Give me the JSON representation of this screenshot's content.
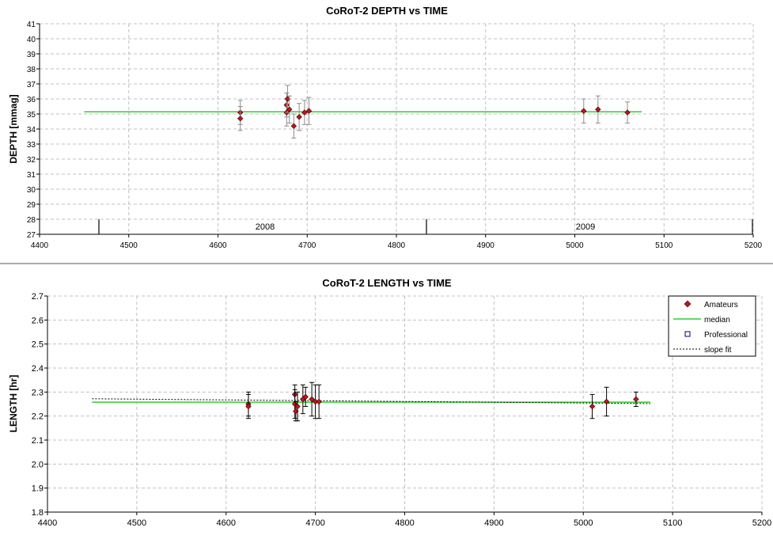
{
  "chart_data": [
    {
      "type": "scatter",
      "title": "CoRoT-2 DEPTH vs TIME",
      "xlabel": "",
      "ylabel": "DEPTH [mmag]",
      "xlim": [
        4400,
        5200
      ],
      "ylim": [
        27,
        41
      ],
      "xticks": [
        4400,
        4500,
        4600,
        4700,
        4800,
        4900,
        5000,
        5100,
        5200
      ],
      "yticks": [
        27,
        28,
        29,
        30,
        31,
        32,
        33,
        34,
        35,
        36,
        37,
        38,
        39,
        40,
        41
      ],
      "grid": true,
      "year_labels": [
        "2008",
        "2009"
      ],
      "series": [
        {
          "name": "",
          "points": [
            {
              "x": 4625,
              "y": 35.1,
              "err": 0.8
            },
            {
              "x": 4625,
              "y": 34.7,
              "err": 0.8
            },
            {
              "x": 4677,
              "y": 35.6,
              "err": 0.8
            },
            {
              "x": 4677,
              "y": 35.1,
              "err": 0.9
            },
            {
              "x": 4678,
              "y": 36.0,
              "err": 0.9
            },
            {
              "x": 4680,
              "y": 35.3,
              "err": 0.9
            },
            {
              "x": 4685,
              "y": 34.2,
              "err": 0.8
            },
            {
              "x": 4691,
              "y": 34.8,
              "err": 0.9
            },
            {
              "x": 4697,
              "y": 35.1,
              "err": 0.8
            },
            {
              "x": 4702,
              "y": 35.2,
              "err": 0.9
            },
            {
              "x": 5010,
              "y": 35.2,
              "err": 0.8
            },
            {
              "x": 5026,
              "y": 35.3,
              "err": 0.9
            },
            {
              "x": 5059,
              "y": 35.1,
              "err": 0.7
            }
          ]
        },
        {
          "name": "",
          "line": {
            "x": [
              4450,
              5075
            ],
            "y": [
              35.15,
              35.15
            ]
          }
        }
      ]
    },
    {
      "type": "scatter",
      "title": "CoRoT-2 LENGTH vs TIME",
      "xlabel": "",
      "ylabel": "LENGTH [hr]",
      "xlim": [
        4400,
        5200
      ],
      "ylim": [
        1.8,
        2.7
      ],
      "xticks": [
        4400,
        4500,
        4600,
        4700,
        4800,
        4900,
        5000,
        5100,
        5200
      ],
      "yticks": [
        "1.8",
        "1.9",
        "2.0",
        "2.1",
        "2.2",
        "2.3",
        "2.4",
        "2.5",
        "2.6",
        "2.7"
      ],
      "grid": true,
      "legend_position": "top-right",
      "series": [
        {
          "name": "Amateurs",
          "points": [
            {
              "x": 4625,
              "y": 2.25,
              "err": 0.05
            },
            {
              "x": 4625,
              "y": 2.24,
              "err": 0.05
            },
            {
              "x": 4677,
              "y": 2.29,
              "err": 0.04
            },
            {
              "x": 4677,
              "y": 2.25,
              "err": 0.06
            },
            {
              "x": 4678,
              "y": 2.22,
              "err": 0.04
            },
            {
              "x": 4680,
              "y": 2.24,
              "err": 0.06
            },
            {
              "x": 4686,
              "y": 2.27,
              "err": 0.06
            },
            {
              "x": 4689,
              "y": 2.28,
              "err": 0.04
            },
            {
              "x": 4696,
              "y": 2.27,
              "err": 0.07
            },
            {
              "x": 4700,
              "y": 2.26,
              "err": 0.07
            },
            {
              "x": 4704,
              "y": 2.26,
              "err": 0.07
            },
            {
              "x": 5010,
              "y": 2.24,
              "err": 0.05
            },
            {
              "x": 5026,
              "y": 2.26,
              "err": 0.06
            },
            {
              "x": 5059,
              "y": 2.27,
              "err": 0.03
            }
          ]
        },
        {
          "name": "median",
          "line": {
            "x": [
              4450,
              5075
            ],
            "y": [
              2.258,
              2.258
            ]
          }
        },
        {
          "name": "Professional",
          "points": []
        },
        {
          "name": "slope fit",
          "line": {
            "x": [
              4450,
              5075
            ],
            "y": [
              2.272,
              2.252
            ]
          }
        }
      ]
    }
  ],
  "colors": {
    "marker": "#c0141a",
    "marker_edge": "#3a0000",
    "median": "#33cc33",
    "grid": "#c0c0c0",
    "err_top": "#8c8c8c",
    "err_bottom": "#000000",
    "divider": "#555555"
  }
}
